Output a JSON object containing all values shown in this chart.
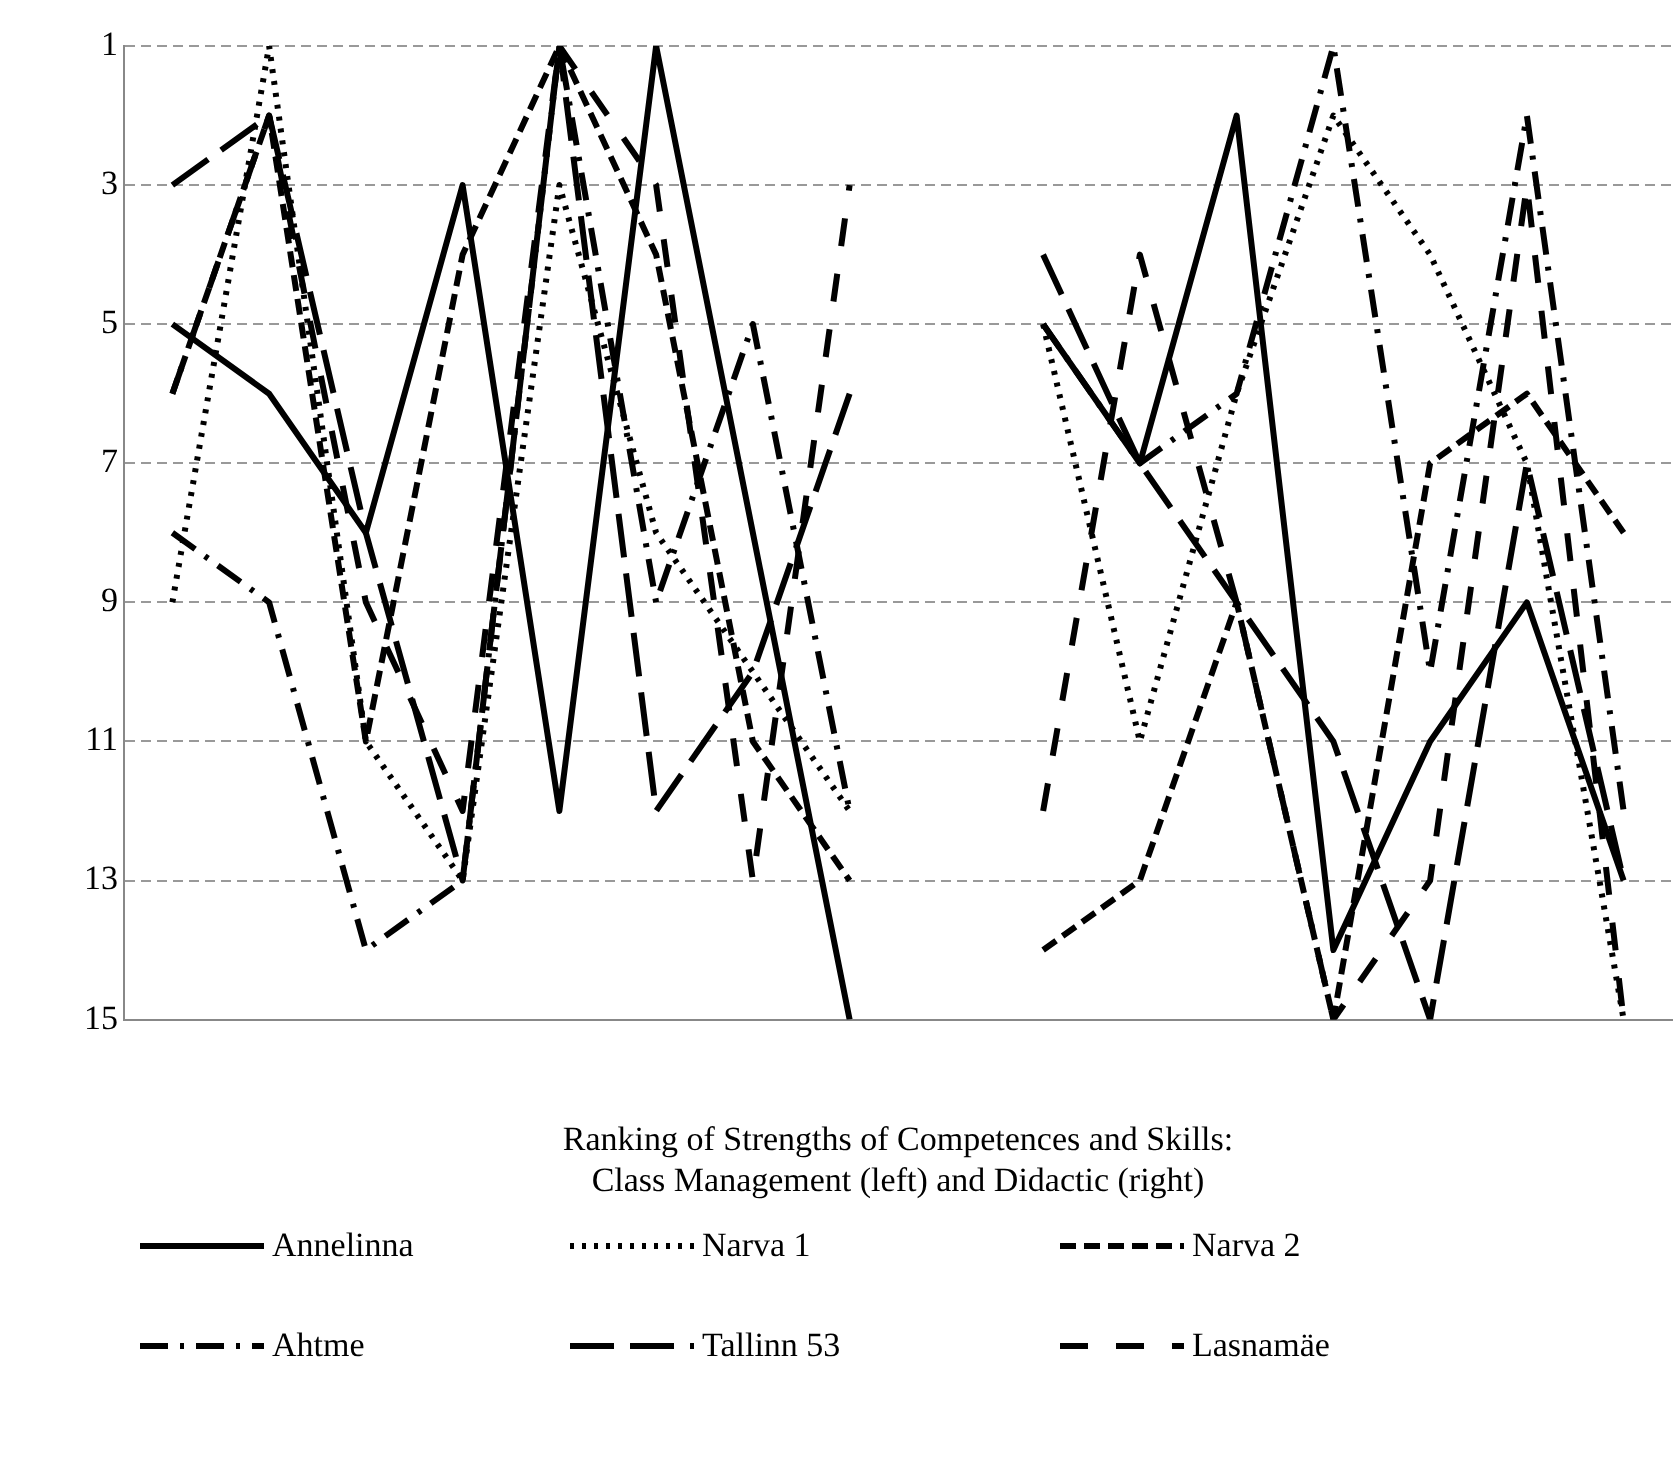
{
  "chart_data": {
    "type": "line",
    "xlabel": "Ranking of Strengths of Competences and Skills:\nClass Management (left) and Didactic (right)",
    "categories": [
      null,
      null,
      null,
      null,
      null,
      null,
      null,
      null,
      null,
      null,
      null,
      null,
      null,
      null,
      null,
      null
    ],
    "ylim": [
      15,
      1
    ],
    "yticks": [
      1,
      3,
      5,
      7,
      9,
      11,
      13,
      15
    ],
    "grid": "y",
    "legend": "bottom",
    "marker": "none",
    "series": [
      {
        "name": "Annelinna",
        "color": "#000000",
        "line_style": "solid",
        "values": [
          5,
          6,
          8,
          3,
          12,
          1,
          8,
          15,
          null,
          5,
          7,
          2,
          14,
          11,
          9,
          13
        ]
      },
      {
        "name": "Narva 1",
        "color": "#000000",
        "line_style": "dotted",
        "values": [
          9,
          1,
          11,
          13,
          3,
          8,
          10,
          12,
          null,
          5,
          11,
          6,
          2,
          4,
          7,
          15
        ]
      },
      {
        "name": "Narva 2",
        "color": "#000000",
        "line_style": "dashed",
        "values": [
          6,
          2,
          11,
          4,
          1,
          4,
          11,
          13,
          null,
          14,
          13,
          9,
          15,
          7,
          6,
          8
        ]
      },
      {
        "name": "Ahtme",
        "color": "#000000",
        "line_style": "dashdot",
        "values": [
          8,
          9,
          14,
          13,
          1,
          9,
          5,
          12,
          null,
          5,
          7,
          6,
          1,
          10,
          2,
          12
        ]
      },
      {
        "name": "Tallinn 53",
        "color": "#000000",
        "line_style": "longdash",
        "values": [
          3,
          2,
          8,
          13,
          1,
          12,
          10,
          6,
          null,
          4,
          7,
          9,
          11,
          15,
          7,
          13
        ]
      },
      {
        "name": "Lasnamäe",
        "color": "#000000",
        "line_style": "spaceddash",
        "values": [
          6,
          2,
          9,
          12,
          1,
          3,
          13,
          3,
          null,
          12,
          4,
          9,
          15,
          13,
          3,
          15
        ]
      }
    ]
  }
}
